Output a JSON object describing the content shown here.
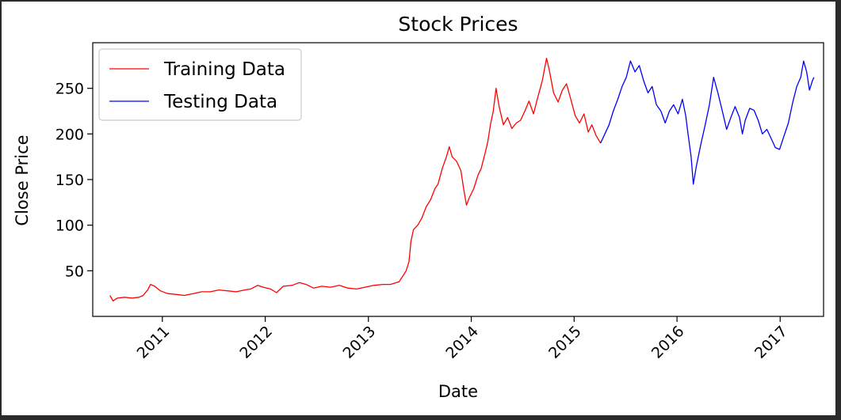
{
  "chart_data": {
    "type": "line",
    "title": "Stock Prices",
    "xlabel": "Date",
    "ylabel": "Close Price",
    "xlim": [
      "2010-04-29",
      "2017-06-04"
    ],
    "ylim": [
      0,
      300
    ],
    "grid": false,
    "legend_position": "top-left",
    "x_ticks": [
      "2011",
      "2012",
      "2013",
      "2014",
      "2015",
      "2016",
      "2017"
    ],
    "x_tick_dates": [
      "2011-01-01",
      "2012-01-01",
      "2013-01-01",
      "2014-01-01",
      "2015-01-01",
      "2016-01-01",
      "2017-01-01"
    ],
    "y_ticks": [
      50,
      100,
      150,
      200,
      250
    ],
    "y_tick_labels": [
      "50",
      "100",
      "150",
      "200",
      "250"
    ],
    "series": [
      {
        "name": "Training Data",
        "color": "#ff0000",
        "points": [
          [
            "2010-06-29",
            23
          ],
          [
            "2010-07-10",
            17
          ],
          [
            "2010-07-25",
            20
          ],
          [
            "2010-08-20",
            21
          ],
          [
            "2010-09-15",
            20
          ],
          [
            "2010-10-10",
            21
          ],
          [
            "2010-10-25",
            23
          ],
          [
            "2010-11-10",
            29
          ],
          [
            "2010-11-20",
            35
          ],
          [
            "2010-12-05",
            33
          ],
          [
            "2010-12-25",
            28
          ],
          [
            "2011-01-20",
            25
          ],
          [
            "2011-02-20",
            24
          ],
          [
            "2011-03-20",
            23
          ],
          [
            "2011-04-20",
            25
          ],
          [
            "2011-05-20",
            27
          ],
          [
            "2011-06-20",
            27
          ],
          [
            "2011-07-20",
            29
          ],
          [
            "2011-08-20",
            28
          ],
          [
            "2011-09-20",
            27
          ],
          [
            "2011-10-20",
            29
          ],
          [
            "2011-11-10",
            30
          ],
          [
            "2011-12-05",
            34
          ],
          [
            "2011-12-25",
            32
          ],
          [
            "2012-01-20",
            30
          ],
          [
            "2012-02-10",
            26
          ],
          [
            "2012-03-05",
            33
          ],
          [
            "2012-04-05",
            34
          ],
          [
            "2012-05-01",
            37
          ],
          [
            "2012-05-25",
            35
          ],
          [
            "2012-06-20",
            31
          ],
          [
            "2012-07-20",
            33
          ],
          [
            "2012-08-20",
            32
          ],
          [
            "2012-09-20",
            34
          ],
          [
            "2012-10-20",
            31
          ],
          [
            "2012-11-20",
            30
          ],
          [
            "2012-12-20",
            32
          ],
          [
            "2013-01-20",
            34
          ],
          [
            "2013-02-20",
            35
          ],
          [
            "2013-03-20",
            35
          ],
          [
            "2013-04-20",
            38
          ],
          [
            "2013-05-05",
            45
          ],
          [
            "2013-05-15",
            50
          ],
          [
            "2013-05-25",
            60
          ],
          [
            "2013-06-01",
            82
          ],
          [
            "2013-06-10",
            95
          ],
          [
            "2013-06-25",
            100
          ],
          [
            "2013-07-10",
            108
          ],
          [
            "2013-07-25",
            120
          ],
          [
            "2013-08-10",
            128
          ],
          [
            "2013-08-25",
            140
          ],
          [
            "2013-09-05",
            145
          ],
          [
            "2013-09-20",
            162
          ],
          [
            "2013-10-05",
            175
          ],
          [
            "2013-10-15",
            186
          ],
          [
            "2013-10-25",
            175
          ],
          [
            "2013-11-10",
            170
          ],
          [
            "2013-11-25",
            160
          ],
          [
            "2013-12-05",
            140
          ],
          [
            "2013-12-15",
            122
          ],
          [
            "2013-12-25",
            130
          ],
          [
            "2014-01-10",
            140
          ],
          [
            "2014-01-25",
            155
          ],
          [
            "2014-02-05",
            162
          ],
          [
            "2014-02-20",
            180
          ],
          [
            "2014-03-01",
            192
          ],
          [
            "2014-03-10",
            210
          ],
          [
            "2014-03-20",
            225
          ],
          [
            "2014-03-30",
            250
          ],
          [
            "2014-04-10",
            230
          ],
          [
            "2014-04-25",
            210
          ],
          [
            "2014-05-10",
            218
          ],
          [
            "2014-05-25",
            206
          ],
          [
            "2014-06-10",
            212
          ],
          [
            "2014-06-25",
            215
          ],
          [
            "2014-07-10",
            225
          ],
          [
            "2014-07-25",
            236
          ],
          [
            "2014-08-10",
            222
          ],
          [
            "2014-08-25",
            240
          ],
          [
            "2014-09-10",
            258
          ],
          [
            "2014-09-25",
            283
          ],
          [
            "2014-10-05",
            270
          ],
          [
            "2014-10-20",
            245
          ],
          [
            "2014-11-05",
            235
          ],
          [
            "2014-11-20",
            248
          ],
          [
            "2014-12-05",
            255
          ],
          [
            "2014-12-20",
            238
          ],
          [
            "2015-01-05",
            220
          ],
          [
            "2015-01-20",
            212
          ],
          [
            "2015-02-05",
            222
          ],
          [
            "2015-02-20",
            202
          ],
          [
            "2015-03-05",
            210
          ],
          [
            "2015-03-20",
            198
          ],
          [
            "2015-04-05",
            190
          ]
        ]
      },
      {
        "name": "Testing Data",
        "color": "#0000ff",
        "points": [
          [
            "2015-04-05",
            190
          ],
          [
            "2015-04-20",
            200
          ],
          [
            "2015-05-05",
            210
          ],
          [
            "2015-05-20",
            225
          ],
          [
            "2015-06-05",
            238
          ],
          [
            "2015-06-20",
            252
          ],
          [
            "2015-07-05",
            262
          ],
          [
            "2015-07-20",
            280
          ],
          [
            "2015-08-05",
            268
          ],
          [
            "2015-08-20",
            275
          ],
          [
            "2015-09-05",
            258
          ],
          [
            "2015-09-20",
            245
          ],
          [
            "2015-10-05",
            252
          ],
          [
            "2015-10-20",
            232
          ],
          [
            "2015-11-05",
            225
          ],
          [
            "2015-11-20",
            212
          ],
          [
            "2015-12-05",
            225
          ],
          [
            "2015-12-20",
            232
          ],
          [
            "2016-01-05",
            222
          ],
          [
            "2016-01-20",
            238
          ],
          [
            "2016-02-01",
            220
          ],
          [
            "2016-02-10",
            198
          ],
          [
            "2016-02-20",
            175
          ],
          [
            "2016-02-28",
            145
          ],
          [
            "2016-03-10",
            165
          ],
          [
            "2016-03-25",
            188
          ],
          [
            "2016-04-10",
            210
          ],
          [
            "2016-04-25",
            232
          ],
          [
            "2016-05-10",
            262
          ],
          [
            "2016-05-25",
            245
          ],
          [
            "2016-06-10",
            225
          ],
          [
            "2016-06-25",
            205
          ],
          [
            "2016-07-10",
            218
          ],
          [
            "2016-07-25",
            230
          ],
          [
            "2016-08-10",
            218
          ],
          [
            "2016-08-20",
            200
          ],
          [
            "2016-08-30",
            215
          ],
          [
            "2016-09-15",
            228
          ],
          [
            "2016-09-30",
            226
          ],
          [
            "2016-10-15",
            215
          ],
          [
            "2016-10-30",
            200
          ],
          [
            "2016-11-15",
            205
          ],
          [
            "2016-11-30",
            195
          ],
          [
            "2016-12-15",
            185
          ],
          [
            "2016-12-30",
            183
          ],
          [
            "2017-01-15",
            198
          ],
          [
            "2017-01-30",
            212
          ],
          [
            "2017-02-15",
            235
          ],
          [
            "2017-03-01",
            252
          ],
          [
            "2017-03-15",
            262
          ],
          [
            "2017-03-25",
            280
          ],
          [
            "2017-04-05",
            268
          ],
          [
            "2017-04-15",
            248
          ],
          [
            "2017-04-25",
            258
          ],
          [
            "2017-05-01",
            262
          ]
        ]
      }
    ]
  }
}
